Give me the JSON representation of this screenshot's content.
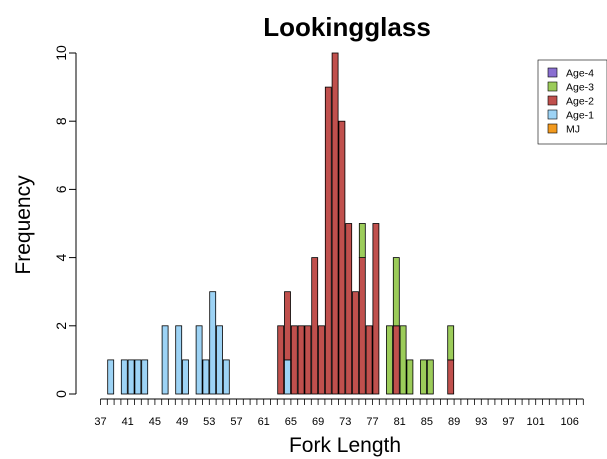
{
  "chart_data": {
    "type": "bar",
    "stacked": true,
    "title": "Lookingglass",
    "xlabel": "Fork Length",
    "ylabel": "Frequency",
    "ylim": [
      0,
      10
    ],
    "yticks": [
      0,
      2,
      4,
      6,
      8,
      10
    ],
    "xrange": [
      37,
      108
    ],
    "xtick_labels": [
      "37",
      "41",
      "45",
      "49",
      "53",
      "57",
      "61",
      "65",
      "69",
      "73",
      "77",
      "81",
      "85",
      "89",
      "93",
      "97",
      "101",
      "106"
    ],
    "legend_position": "top-right",
    "series": [
      {
        "name": "Age-4",
        "color": "#8a6fd1",
        "points": []
      },
      {
        "name": "Age-3",
        "color": "#9ccc5a",
        "points": [
          [
            75,
            1
          ],
          [
            79,
            2
          ],
          [
            80,
            2
          ],
          [
            81,
            2
          ],
          [
            82,
            1
          ],
          [
            84,
            1
          ],
          [
            85,
            1
          ],
          [
            88,
            1
          ]
        ]
      },
      {
        "name": "Age-2",
        "color": "#c0504d",
        "points": [
          [
            63,
            2
          ],
          [
            64,
            2
          ],
          [
            65,
            2
          ],
          [
            66,
            2
          ],
          [
            67,
            2
          ],
          [
            68,
            4
          ],
          [
            69,
            2
          ],
          [
            70,
            9
          ],
          [
            71,
            10
          ],
          [
            72,
            8
          ],
          [
            73,
            5
          ],
          [
            74,
            3
          ],
          [
            75,
            4
          ],
          [
            76,
            2
          ],
          [
            77,
            5
          ],
          [
            80,
            2
          ],
          [
            88,
            1
          ]
        ]
      },
      {
        "name": "Age-1",
        "color": "#9dd3f5",
        "points": [
          [
            38,
            1
          ],
          [
            40,
            1
          ],
          [
            41,
            1
          ],
          [
            42,
            1
          ],
          [
            43,
            1
          ],
          [
            46,
            2
          ],
          [
            48,
            2
          ],
          [
            49,
            1
          ],
          [
            51,
            2
          ],
          [
            52,
            1
          ],
          [
            53,
            3
          ],
          [
            54,
            2
          ],
          [
            55,
            1
          ],
          [
            64,
            1
          ]
        ]
      },
      {
        "name": "MJ",
        "color": "#f29a1f",
        "points": []
      }
    ]
  }
}
